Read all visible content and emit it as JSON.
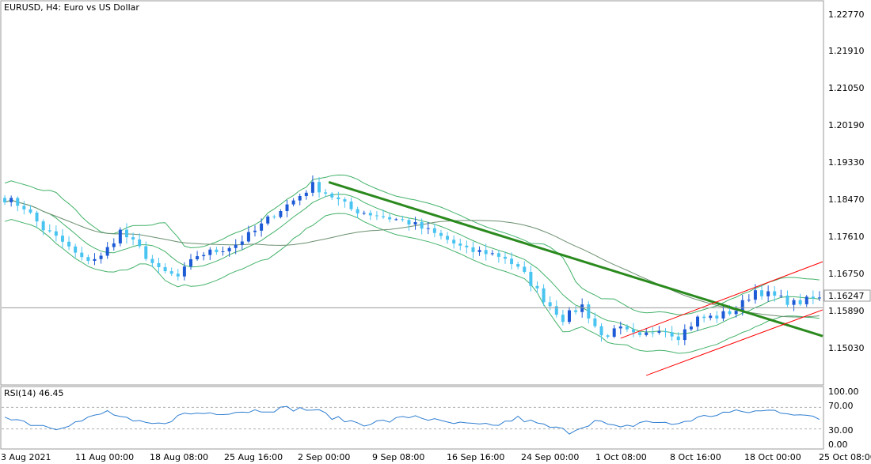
{
  "chart_data": [
    {
      "type": "candlestick",
      "title": "EURUSD, H4:  Euro vs US Dollar",
      "symbol": "EURUSD",
      "timeframe": "H4",
      "description": "Euro vs US Dollar",
      "y_ticks": [
        "1.22770",
        "1.21910",
        "1.21050",
        "1.20190",
        "1.19330",
        "1.18470",
        "1.17610",
        "1.16750",
        "1.15890",
        "1.15030"
      ],
      "ylim": [
        1.145,
        1.2325
      ],
      "x_ticks": [
        "3 Aug 2021",
        "11 Aug 00:00",
        "18 Aug 08:00",
        "25 Aug 16:00",
        "2 Sep 00:00",
        "9 Sep 08:00",
        "16 Sep 16:00",
        "24 Sep 00:00",
        "1 Oct 08:00",
        "8 Oct 16:00",
        "18 Oct 00:00",
        "25 Oct 08:00"
      ],
      "current_price": "1.16247",
      "current_price_value": 1.16247,
      "close_path": [
        [
          0,
          1.1875
        ],
        [
          3,
          1.1855
        ],
        [
          6,
          1.1805
        ],
        [
          9,
          1.1775
        ],
        [
          12,
          1.1735
        ],
        [
          15,
          1.174
        ],
        [
          18,
          1.18
        ],
        [
          21,
          1.176
        ],
        [
          24,
          1.171
        ],
        [
          27,
          1.1695
        ],
        [
          30,
          1.1745
        ],
        [
          33,
          1.1755
        ],
        [
          36,
          1.177
        ],
        [
          39,
          1.18
        ],
        [
          42,
          1.184
        ],
        [
          45,
          1.187
        ],
        [
          48,
          1.1905
        ],
        [
          51,
          1.188
        ],
        [
          54,
          1.185
        ],
        [
          57,
          1.184
        ],
        [
          60,
          1.183
        ],
        [
          63,
          1.182
        ],
        [
          66,
          1.18
        ],
        [
          69,
          1.178
        ],
        [
          72,
          1.1755
        ],
        [
          75,
          1.1752
        ],
        [
          78,
          1.174
        ],
        [
          81,
          1.17
        ],
        [
          84,
          1.1645
        ],
        [
          87,
          1.16
        ],
        [
          90,
          1.163
        ],
        [
          93,
          1.156
        ],
        [
          96,
          1.1575
        ],
        [
          99,
          1.1555
        ],
        [
          102,
          1.158
        ],
        [
          105,
          1.156
        ],
        [
          108,
          1.16
        ],
        [
          111,
          1.1605
        ],
        [
          114,
          1.162
        ],
        [
          117,
          1.1665
        ],
        [
          120,
          1.165
        ],
        [
          123,
          1.1635
        ],
        [
          126,
          1.1645
        ]
      ],
      "trendlines": [
        {
          "color": "#2b8a1e",
          "from": [
            50.5,
            1.1912
          ],
          "to": [
            127.5,
            1.156
          ]
        },
        {
          "color": "#ff0000",
          "from": [
            96,
            1.1555
          ],
          "to": [
            127.5,
            1.173
          ]
        },
        {
          "color": "#ff0000",
          "from": [
            100,
            1.147
          ],
          "to": [
            127.5,
            1.162
          ]
        }
      ],
      "indicators": [
        "Bollinger Bands",
        "Moving Average"
      ],
      "colors": {
        "candle": "#1d5bd6",
        "candle_light": "#49c4f1",
        "bands": "#43b26a",
        "ma": "#6b8f6f",
        "price_line": "#9a9a9a"
      }
    },
    {
      "type": "line",
      "title": "RSI(14) 46.45",
      "label": "RSI(14)",
      "value": "46.45",
      "y_ticks": [
        "100.00",
        "70.00",
        "30.00",
        "0.00"
      ],
      "levels": [
        70,
        30
      ],
      "ylim": [
        0,
        100
      ],
      "path": [
        [
          0,
          55
        ],
        [
          4,
          40
        ],
        [
          8,
          33
        ],
        [
          12,
          45
        ],
        [
          16,
          62
        ],
        [
          20,
          42
        ],
        [
          24,
          38
        ],
        [
          28,
          58
        ],
        [
          32,
          60
        ],
        [
          36,
          62
        ],
        [
          40,
          65
        ],
        [
          44,
          68
        ],
        [
          48,
          66
        ],
        [
          52,
          48
        ],
        [
          56,
          40
        ],
        [
          60,
          45
        ],
        [
          64,
          55
        ],
        [
          68,
          42
        ],
        [
          72,
          38
        ],
        [
          76,
          35
        ],
        [
          80,
          50
        ],
        [
          84,
          36
        ],
        [
          88,
          25
        ],
        [
          92,
          45
        ],
        [
          96,
          30
        ],
        [
          100,
          45
        ],
        [
          104,
          38
        ],
        [
          108,
          50
        ],
        [
          112,
          60
        ],
        [
          116,
          62
        ],
        [
          120,
          64
        ],
        [
          124,
          58
        ],
        [
          127,
          46
        ]
      ],
      "color": "#2f7ed1"
    }
  ]
}
